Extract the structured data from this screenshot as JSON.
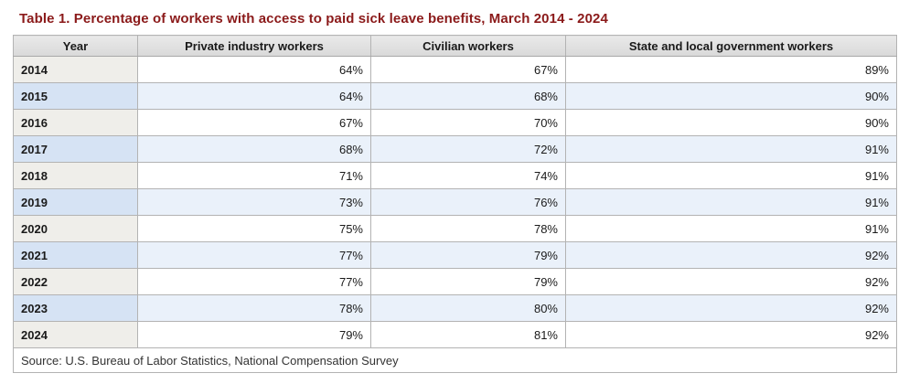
{
  "title": "Table 1. Percentage of workers with access to paid sick leave benefits, March 2014 - 2024",
  "table": {
    "columns": [
      "Year",
      "Private industry workers",
      "Civilian workers",
      "State and local government workers"
    ],
    "rows": [
      {
        "year": "2014",
        "values": [
          "64%",
          "67%",
          "89%"
        ]
      },
      {
        "year": "2015",
        "values": [
          "64%",
          "68%",
          "90%"
        ]
      },
      {
        "year": "2016",
        "values": [
          "67%",
          "70%",
          "90%"
        ]
      },
      {
        "year": "2017",
        "values": [
          "68%",
          "72%",
          "91%"
        ]
      },
      {
        "year": "2018",
        "values": [
          "71%",
          "74%",
          "91%"
        ]
      },
      {
        "year": "2019",
        "values": [
          "73%",
          "76%",
          "91%"
        ]
      },
      {
        "year": "2020",
        "values": [
          "75%",
          "78%",
          "91%"
        ]
      },
      {
        "year": "2021",
        "values": [
          "77%",
          "79%",
          "92%"
        ]
      },
      {
        "year": "2022",
        "values": [
          "77%",
          "79%",
          "92%"
        ]
      },
      {
        "year": "2023",
        "values": [
          "78%",
          "80%",
          "92%"
        ]
      },
      {
        "year": "2024",
        "values": [
          "79%",
          "81%",
          "92%"
        ]
      }
    ],
    "source": "Source: U.S. Bureau of Labor Statistics, National Compensation Survey"
  },
  "chart_data": {
    "type": "table",
    "title": "Table 1. Percentage of workers with access to paid sick leave benefits, March 2014 - 2024",
    "categories": [
      "2014",
      "2015",
      "2016",
      "2017",
      "2018",
      "2019",
      "2020",
      "2021",
      "2022",
      "2023",
      "2024"
    ],
    "series": [
      {
        "name": "Private industry workers",
        "values": [
          64,
          64,
          67,
          68,
          71,
          73,
          75,
          77,
          77,
          78,
          79
        ]
      },
      {
        "name": "Civilian workers",
        "values": [
          67,
          68,
          70,
          72,
          74,
          76,
          78,
          79,
          79,
          80,
          81
        ]
      },
      {
        "name": "State and local government workers",
        "values": [
          89,
          90,
          90,
          91,
          91,
          91,
          91,
          92,
          92,
          92,
          92
        ]
      }
    ],
    "unit": "%",
    "source": "Source: U.S. Bureau of Labor Statistics, National Compensation Survey"
  },
  "colors": {
    "title_color": "#8b1a1a",
    "header_bg": "#e0e0e0",
    "year_bg": "#efeeea",
    "alt_row_bg": "#eaf1fa",
    "alt_year_bg": "#d6e3f4",
    "border": "#b3b3b3",
    "outer_border": "#999999",
    "text": "#1a1a1a",
    "source_text": "#333333"
  }
}
